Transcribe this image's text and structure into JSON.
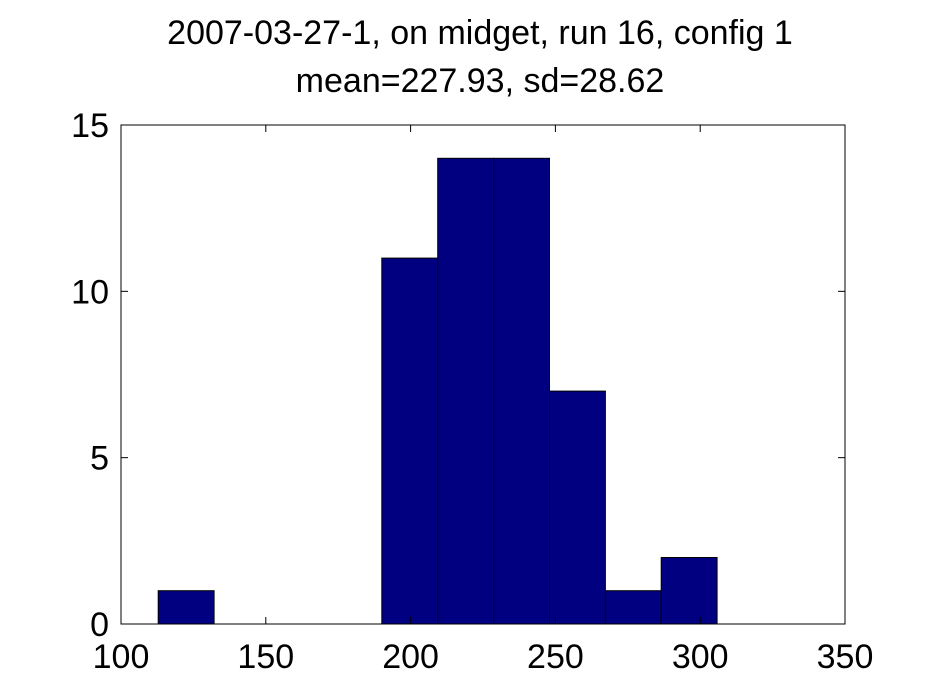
{
  "chart_data": {
    "type": "bar",
    "title": "2007-03-27-1, on midget, run 16, config 1",
    "subtitle": "mean=227.93, sd=28.62",
    "xlabel": "",
    "ylabel": "",
    "xlim": [
      100,
      350
    ],
    "ylim": [
      0,
      15
    ],
    "xticks": [
      100,
      150,
      200,
      250,
      300,
      350
    ],
    "yticks": [
      0,
      5,
      10,
      15
    ],
    "bin_width": 19.3,
    "bins": [
      {
        "center": 122.5,
        "count": 1
      },
      {
        "center": 141.8,
        "count": 0
      },
      {
        "center": 161.1,
        "count": 0
      },
      {
        "center": 180.4,
        "count": 0
      },
      {
        "center": 199.7,
        "count": 11
      },
      {
        "center": 219.0,
        "count": 14
      },
      {
        "center": 238.3,
        "count": 14
      },
      {
        "center": 257.6,
        "count": 7
      },
      {
        "center": 276.9,
        "count": 1
      },
      {
        "center": 296.2,
        "count": 2
      }
    ],
    "bar_color": "#000080",
    "edge_color": "#000000",
    "grid": false,
    "legend": "none"
  }
}
